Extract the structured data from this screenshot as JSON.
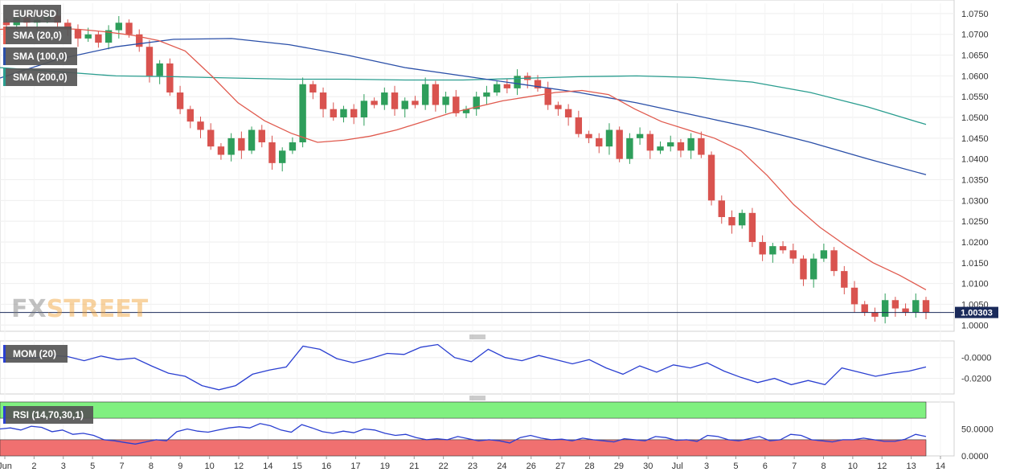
{
  "chart_data": [
    {
      "type": "candlestick",
      "title": "EUR/USD",
      "ylim": [
        0.9985,
        1.0775
      ],
      "yticks": [
        "1.0750",
        "1.0700",
        "1.0650",
        "1.0600",
        "1.0550",
        "1.0500",
        "1.0450",
        "1.0400",
        "1.0350",
        "1.0300",
        "1.0250",
        "1.0200",
        "1.0150",
        "1.0100",
        "1.0050",
        "1.0000"
      ],
      "last_price": "1.00303",
      "legend": [
        "EUR/USD",
        "SMA (20,0)",
        "SMA (100,0)",
        "SMA (200,0)"
      ],
      "colors": {
        "up": "#2e9e5b",
        "down": "#d9534f",
        "sma20": "#e05a4e",
        "sma100": "#2a4fa8",
        "sma200": "#2a9d8f",
        "price_line": "#1a2a5a"
      },
      "close_path": [
        1.0722,
        1.074,
        1.0728,
        1.0735,
        1.0745,
        1.0728,
        1.0712,
        1.069,
        1.07,
        1.068,
        1.071,
        1.0728,
        1.07,
        1.067,
        1.06,
        1.063,
        1.056,
        1.052,
        1.049,
        1.047,
        1.043,
        1.041,
        1.045,
        1.042,
        1.047,
        1.044,
        1.039,
        1.042,
        1.044,
        1.058,
        1.056,
        1.052,
        1.05,
        1.052,
        1.05,
        1.054,
        1.053,
        1.056,
        1.052,
        1.054,
        1.053,
        1.058,
        1.053,
        1.055,
        1.051,
        1.052,
        1.055,
        1.056,
        1.058,
        1.057,
        1.06,
        1.059,
        1.057,
        1.053,
        1.052,
        1.05,
        1.046,
        1.045,
        1.043,
        1.047,
        1.04,
        1.045,
        1.046,
        1.042,
        1.043,
        1.044,
        1.042,
        1.045,
        1.041,
        1.03,
        1.026,
        1.024,
        1.027,
        1.02,
        1.017,
        1.019,
        1.018,
        1.016,
        1.011,
        1.016,
        1.018,
        1.013,
        1.009,
        1.005,
        1.003,
        1.002,
        1.006,
        1.004,
        1.003,
        1.006,
        1.003
      ],
      "sma20_path": [
        1.0712,
        1.0716,
        1.0715,
        1.0712,
        1.0706,
        1.0698,
        1.0685,
        1.066,
        1.06,
        1.0535,
        1.0492,
        1.0462,
        1.044,
        1.0445,
        1.0455,
        1.047,
        1.049,
        1.051,
        1.0525,
        1.054,
        1.055,
        1.056,
        1.0565,
        1.0555,
        1.052,
        1.049,
        1.047,
        1.045,
        1.042,
        1.036,
        1.029,
        1.0235,
        1.019,
        1.015,
        1.012,
        1.0085
      ],
      "sma100_path": [
        1.0595,
        1.064,
        1.067,
        1.0688,
        1.069,
        1.0675,
        1.065,
        1.062,
        1.06,
        1.058,
        1.056,
        1.0535,
        1.0505,
        1.0475,
        1.044,
        1.04,
        1.0362
      ],
      "sma200_path": [
        1.062,
        1.061,
        1.06,
        1.0598,
        1.0595,
        1.0592,
        1.0592,
        1.059,
        1.059,
        1.0594,
        1.0598,
        1.06,
        1.0596,
        1.0585,
        1.056,
        1.0525,
        1.0483
      ]
    },
    {
      "type": "line",
      "title": "MOM (20)",
      "ylim": [
        -0.035,
        0.016
      ],
      "yticks": [
        "-0.0000",
        "-0.0200"
      ],
      "colors": {
        "line": "#2a3fd1"
      },
      "values": [
        0.0,
        -0.001,
        -0.0005,
        0.002,
        0.001,
        -0.003,
        0.0015,
        -0.002,
        -0.0005,
        -0.008,
        -0.015,
        -0.018,
        -0.027,
        -0.031,
        -0.027,
        -0.016,
        -0.012,
        -0.009,
        0.011,
        0.008,
        -0.001,
        -0.005,
        -0.001,
        0.004,
        0.003,
        0.01,
        0.0125,
        0.0,
        -0.004,
        0.008,
        0.0,
        -0.003,
        0.002,
        -0.002,
        -0.006,
        -0.002,
        -0.01,
        -0.016,
        -0.008,
        -0.014,
        -0.007,
        -0.01,
        -0.005,
        -0.013,
        -0.019,
        -0.024,
        -0.02,
        -0.026,
        -0.022,
        -0.026,
        -0.01,
        -0.014,
        -0.018,
        -0.015,
        -0.013,
        -0.009
      ]
    },
    {
      "type": "line",
      "title": "RSI (14,70,30,1)",
      "ylim": [
        0,
        100
      ],
      "yticks": [
        "50.0000",
        "0.0000"
      ],
      "bands": {
        "upper": 70,
        "lower": 30
      },
      "colors": {
        "line": "#2a3fd1",
        "upper_band": "#80f080",
        "lower_band": "#f07070"
      },
      "values": [
        50,
        52,
        48,
        55,
        53,
        45,
        48,
        40,
        42,
        38,
        30,
        28,
        25,
        22,
        26,
        30,
        28,
        45,
        50,
        46,
        44,
        48,
        52,
        54,
        52,
        60,
        56,
        48,
        44,
        58,
        52,
        45,
        42,
        46,
        43,
        50,
        48,
        42,
        38,
        40,
        34,
        30,
        32,
        30,
        36,
        32,
        28,
        30,
        28,
        24,
        34,
        38,
        33,
        30,
        31,
        28,
        33,
        30,
        28,
        26,
        32,
        30,
        28,
        36,
        34,
        29,
        30,
        27,
        38,
        36,
        30,
        28,
        32,
        36,
        28,
        30,
        40,
        38,
        30,
        28,
        26,
        30,
        30,
        33,
        30,
        27,
        27,
        31,
        40,
        36
      ]
    }
  ],
  "x_ticks": [
    "Jun",
    "2",
    "3",
    "5",
    "7",
    "8",
    "9",
    "10",
    "12",
    "14",
    "15",
    "16",
    "17",
    "19",
    "21",
    "22",
    "23",
    "24",
    "26",
    "27",
    "28",
    "29",
    "30",
    "Jul",
    "3",
    "5",
    "6",
    "7",
    "8",
    "10",
    "12",
    "13",
    "14"
  ],
  "watermark": "FXSTREET"
}
